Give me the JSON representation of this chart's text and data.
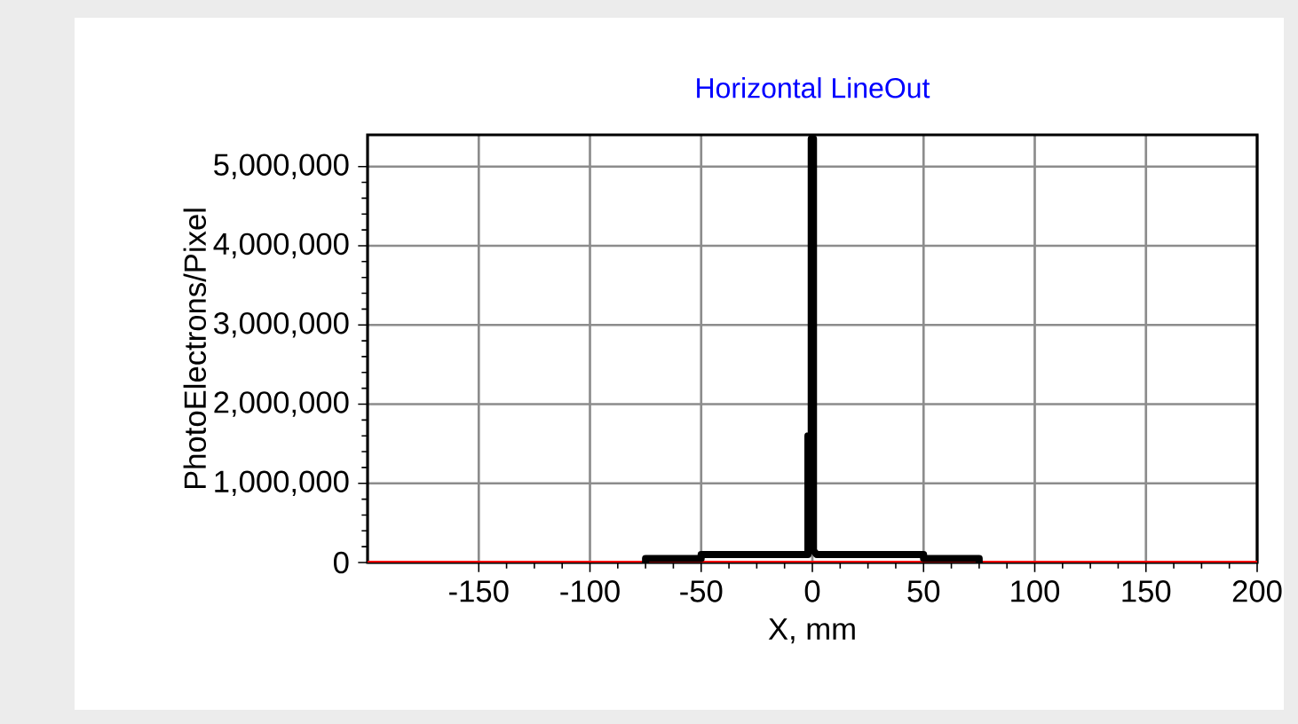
{
  "chart_data": {
    "type": "line",
    "title": "Horizontal LineOut",
    "xlabel": "X, mm",
    "ylabel": "PhotoElectrons/Pixel",
    "xlim": [
      -200,
      200
    ],
    "xticks": [
      -150,
      -100,
      -50,
      0,
      50,
      100,
      150,
      200
    ],
    "ylim": [
      0,
      5400000
    ],
    "yticks": [
      {
        "value": 0,
        "label": "0"
      },
      {
        "value": 1000000,
        "label": "1,000,000"
      },
      {
        "value": 2000000,
        "label": "2,000,000"
      },
      {
        "value": 3000000,
        "label": "3,000,000"
      },
      {
        "value": 4000000,
        "label": "4,000,000"
      },
      {
        "value": 5000000,
        "label": "5,000,000"
      }
    ],
    "grid": true,
    "marker": "none",
    "line_style": "solid",
    "series": [
      {
        "color": "#ff0000",
        "x": [
          -200,
          200
        ],
        "values": [
          0,
          0
        ]
      },
      {
        "color": "#000000",
        "x": [
          -75,
          -75,
          -50,
          -50,
          -2,
          -2,
          -0.5,
          -0.5,
          0.5,
          0.5,
          2,
          50,
          50,
          75,
          75
        ],
        "values": [
          0,
          50000,
          50000,
          100000,
          100000,
          1600000,
          1600000,
          5350000,
          5350000,
          150000,
          100000,
          100000,
          50000,
          50000,
          0
        ]
      }
    ]
  }
}
